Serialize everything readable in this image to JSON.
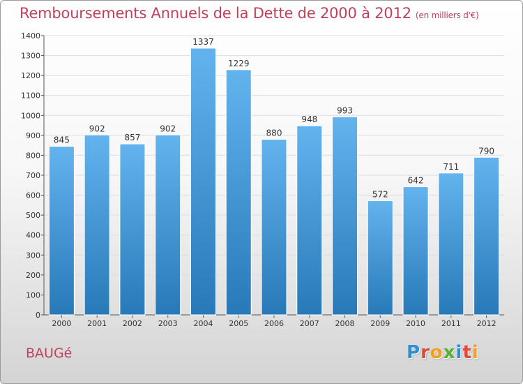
{
  "header": {
    "title": "Remboursements Annuels de la Dette de 2000 à 2012",
    "subtitle": "(en milliers d'€)"
  },
  "footer": {
    "city": "BAUGé",
    "logo_letters": [
      "P",
      "r",
      "o",
      "x",
      "i",
      "t",
      "i"
    ],
    "logo_colors": [
      "#2f8fd0",
      "#e0483a",
      "#f2a020",
      "#5ab030",
      "#2f8fd0",
      "#e0483a",
      "#f2a020"
    ]
  },
  "chart_data": {
    "type": "bar",
    "title": "Remboursements Annuels de la Dette de 2000 à 2012",
    "xlabel": "",
    "ylabel": "",
    "categories": [
      "2000",
      "2001",
      "2002",
      "2003",
      "2004",
      "2005",
      "2006",
      "2007",
      "2008",
      "2009",
      "2010",
      "2011",
      "2012"
    ],
    "values": [
      845,
      902,
      857,
      902,
      1337,
      1229,
      880,
      948,
      993,
      572,
      642,
      711,
      790
    ],
    "ylim": [
      0,
      1400
    ],
    "yticks": [
      0,
      100,
      200,
      300,
      400,
      500,
      600,
      700,
      800,
      900,
      1000,
      1100,
      1200,
      1300,
      1400
    ],
    "grid": true,
    "bar_color_top": "#62b3ee",
    "bar_color_bottom": "#2879b8",
    "title_color": "#c0405a"
  }
}
